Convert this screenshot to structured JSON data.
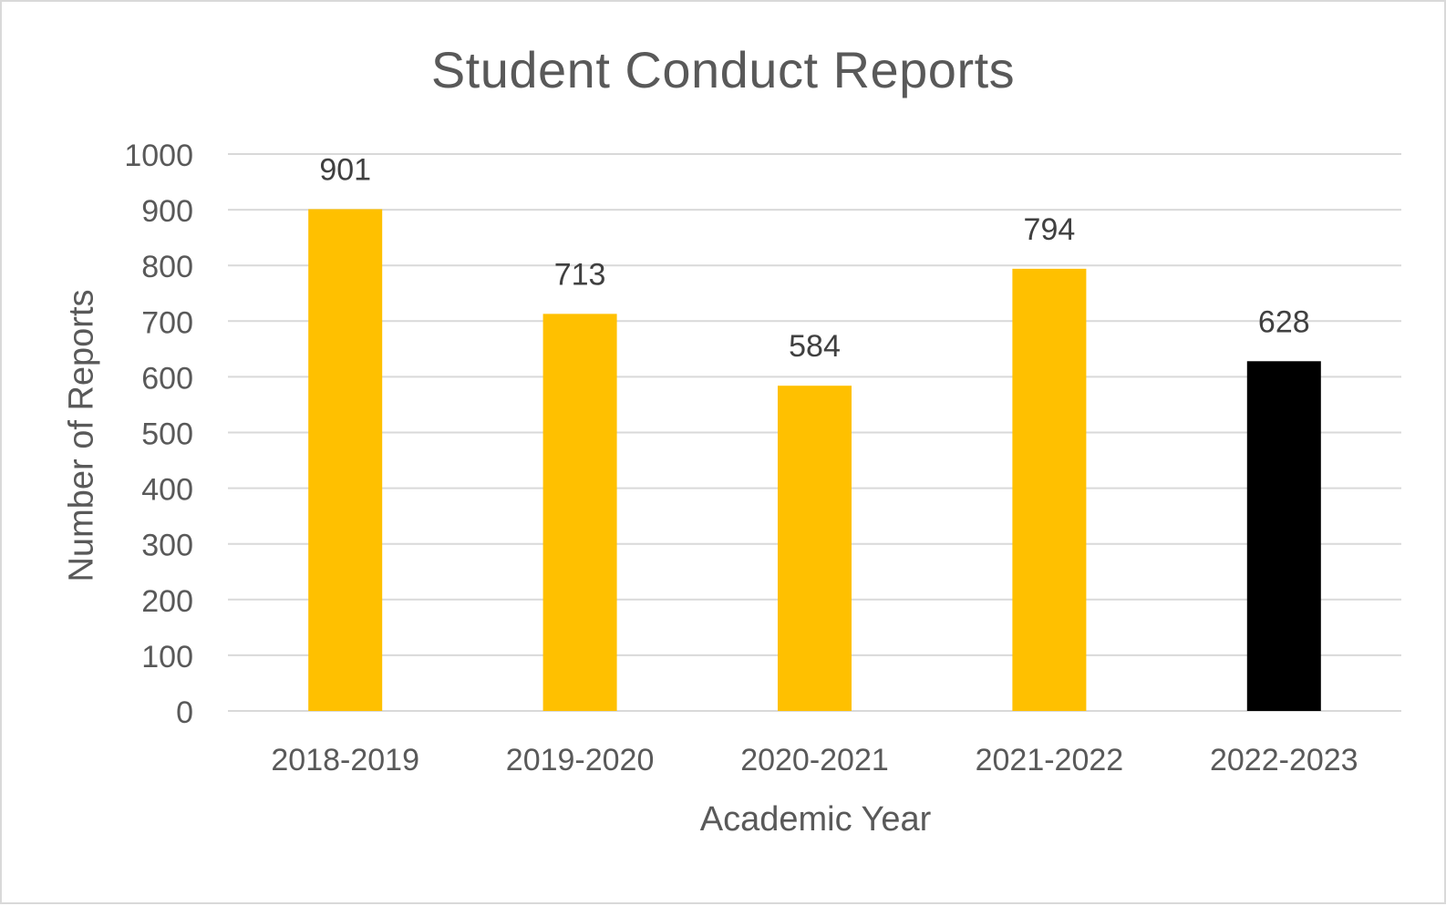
{
  "chart_data": {
    "type": "bar",
    "title": "Student Conduct Reports",
    "xlabel": "Academic Year",
    "ylabel": "Number of Reports",
    "categories": [
      "2018-2019",
      "2019-2020",
      "2020-2021",
      "2021-2022",
      "2022-2023"
    ],
    "values": [
      901,
      713,
      584,
      794,
      628
    ],
    "data_labels": [
      "901",
      "713",
      "584",
      "794",
      "628"
    ],
    "bar_colors": [
      "#FFC000",
      "#FFC000",
      "#FFC000",
      "#FFC000",
      "#000000"
    ],
    "ylim": [
      0,
      1000
    ],
    "yticks": [
      0,
      100,
      200,
      300,
      400,
      500,
      600,
      700,
      800,
      900,
      1000
    ],
    "ytick_labels": [
      "0",
      "100",
      "200",
      "300",
      "400",
      "500",
      "600",
      "700",
      "800",
      "900",
      "1000"
    ],
    "grid": true,
    "legend": "none"
  }
}
